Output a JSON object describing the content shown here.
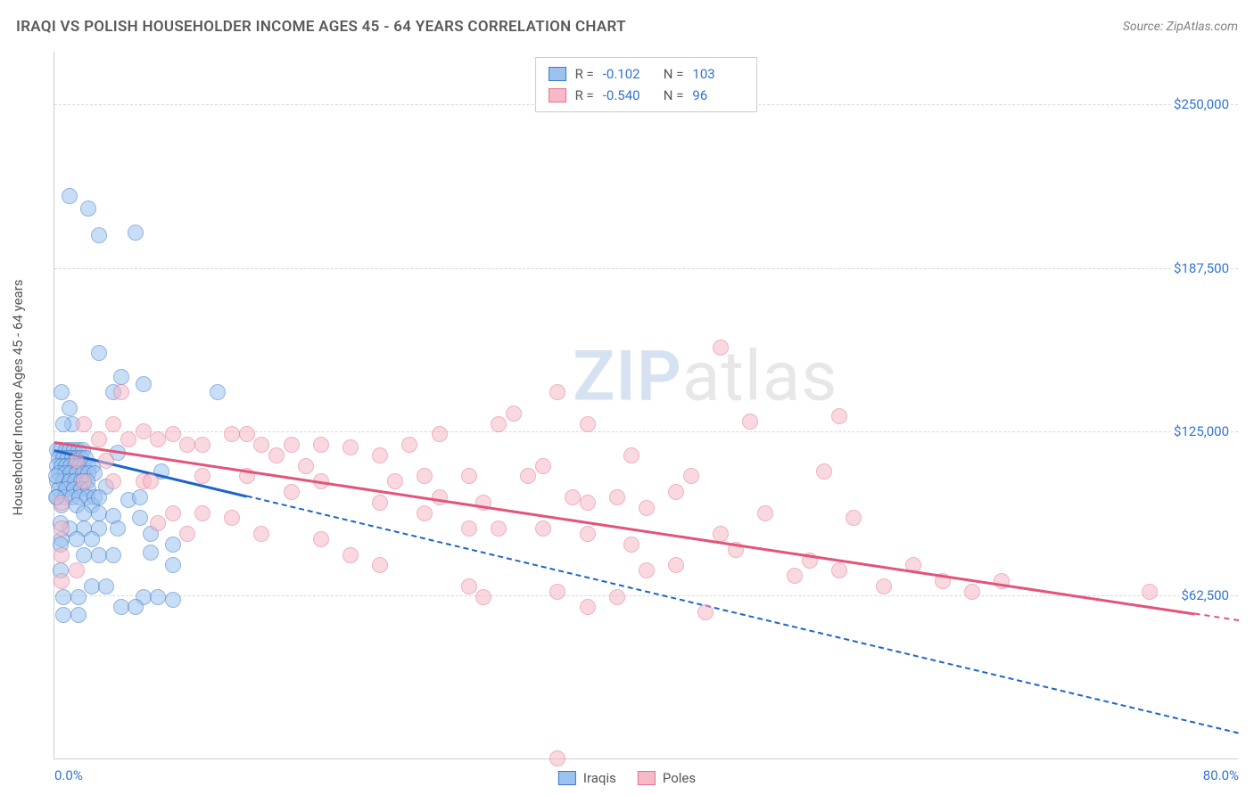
{
  "title": "IRAQI VS POLISH HOUSEHOLDER INCOME AGES 45 - 64 YEARS CORRELATION CHART",
  "source_label": "Source:",
  "source_name": "ZipAtlas.com",
  "ylabel": "Householder Income Ages 45 - 64 years",
  "watermark_a": "ZIP",
  "watermark_b": "atlas",
  "chart": {
    "type": "scatter",
    "background_color": "#ffffff",
    "grid_color": "#d8d8d8",
    "axis_color": "#cfcfcf",
    "text_color": "#555555",
    "tick_color": "#2f74d0",
    "xlim": [
      0,
      80
    ],
    "ylim": [
      0,
      270000
    ],
    "xticks": [
      {
        "v": 0,
        "label": "0.0%"
      },
      {
        "v": 80,
        "label": "80.0%"
      }
    ],
    "yticks": [
      {
        "v": 62500,
        "label": "$62,500"
      },
      {
        "v": 125000,
        "label": "$125,000"
      },
      {
        "v": 187500,
        "label": "$187,500"
      },
      {
        "v": 250000,
        "label": "$250,000"
      }
    ],
    "marker_radius": 9,
    "marker_opacity": 0.55,
    "series": [
      {
        "name": "Iraqis",
        "fill": "#9cc3f0",
        "stroke": "#3b78c9",
        "line_color": "#1f64c8",
        "R": "-0.102",
        "N": "103",
        "points": [
          [
            1.0,
            215000
          ],
          [
            2.3,
            210000
          ],
          [
            5.5,
            201000
          ],
          [
            3.0,
            200000
          ],
          [
            3.0,
            155000
          ],
          [
            4.5,
            146000
          ],
          [
            0.5,
            140000
          ],
          [
            1.0,
            134000
          ],
          [
            1.2,
            128000
          ],
          [
            0.6,
            128000
          ],
          [
            4.0,
            140000
          ],
          [
            4.3,
            117000
          ],
          [
            6.0,
            143000
          ],
          [
            7.2,
            110000
          ],
          [
            11.0,
            140000
          ],
          [
            0.2,
            118000
          ],
          [
            0.4,
            118000
          ],
          [
            0.8,
            118000
          ],
          [
            1.0,
            118000
          ],
          [
            1.3,
            118000
          ],
          [
            1.6,
            118000
          ],
          [
            1.9,
            118000
          ],
          [
            0.3,
            115000
          ],
          [
            0.6,
            115000
          ],
          [
            0.9,
            115000
          ],
          [
            1.2,
            115000
          ],
          [
            1.5,
            115000
          ],
          [
            1.8,
            115000
          ],
          [
            2.1,
            115000
          ],
          [
            0.2,
            112000
          ],
          [
            0.5,
            112000
          ],
          [
            0.8,
            112000
          ],
          [
            1.1,
            112000
          ],
          [
            1.4,
            112000
          ],
          [
            1.7,
            112000
          ],
          [
            2.0,
            112000
          ],
          [
            2.3,
            112000
          ],
          [
            2.6,
            112000
          ],
          [
            0.3,
            109000
          ],
          [
            0.7,
            109000
          ],
          [
            1.1,
            109000
          ],
          [
            1.5,
            109000
          ],
          [
            1.9,
            109000
          ],
          [
            2.3,
            109000
          ],
          [
            2.7,
            109000
          ],
          [
            0.2,
            106000
          ],
          [
            0.6,
            106000
          ],
          [
            1.0,
            106000
          ],
          [
            1.4,
            106000
          ],
          [
            1.8,
            106000
          ],
          [
            2.2,
            106000
          ],
          [
            0.3,
            103000
          ],
          [
            0.8,
            103000
          ],
          [
            1.3,
            103000
          ],
          [
            1.8,
            103000
          ],
          [
            2.3,
            103000
          ],
          [
            0.2,
            100000
          ],
          [
            0.7,
            100000
          ],
          [
            1.2,
            100000
          ],
          [
            1.7,
            100000
          ],
          [
            2.2,
            100000
          ],
          [
            2.7,
            100000
          ],
          [
            0.5,
            97000
          ],
          [
            1.5,
            97000
          ],
          [
            2.5,
            97000
          ],
          [
            3.5,
            104000
          ],
          [
            3.0,
            100000
          ],
          [
            2.0,
            94000
          ],
          [
            3.0,
            94000
          ],
          [
            4.0,
            93000
          ],
          [
            5.0,
            99000
          ],
          [
            4.3,
            88000
          ],
          [
            3.0,
            88000
          ],
          [
            2.0,
            88000
          ],
          [
            1.0,
            88000
          ],
          [
            0.5,
            84000
          ],
          [
            1.5,
            84000
          ],
          [
            2.5,
            84000
          ],
          [
            5.8,
            92000
          ],
          [
            5.8,
            100000
          ],
          [
            2.0,
            78000
          ],
          [
            3.0,
            78000
          ],
          [
            4.0,
            78000
          ],
          [
            6.5,
            79000
          ],
          [
            6.5,
            86000
          ],
          [
            8.0,
            82000
          ],
          [
            8.0,
            74000
          ],
          [
            2.5,
            66000
          ],
          [
            3.5,
            66000
          ],
          [
            6.0,
            62000
          ],
          [
            7.0,
            62000
          ],
          [
            8.0,
            61000
          ],
          [
            4.5,
            58000
          ],
          [
            5.5,
            58000
          ],
          [
            0.6,
            62000
          ],
          [
            1.6,
            62000
          ],
          [
            1.6,
            55000
          ],
          [
            0.6,
            55000
          ],
          [
            0.4,
            82000
          ],
          [
            0.4,
            90000
          ],
          [
            0.4,
            72000
          ],
          [
            0.1,
            108000
          ],
          [
            0.1,
            100000
          ]
        ],
        "reg": {
          "x1": 0,
          "y1": 118000,
          "x2": 80,
          "y2": 10000,
          "solid_until_x": 13
        }
      },
      {
        "name": "Poles",
        "fill": "#f5b9c8",
        "stroke": "#e2748f",
        "line_color": "#e25578",
        "R": "-0.540",
        "N": "96",
        "points": [
          [
            45.0,
            157000
          ],
          [
            34.0,
            140000
          ],
          [
            36.0,
            128000
          ],
          [
            47.0,
            129000
          ],
          [
            52.0,
            110000
          ],
          [
            53.0,
            131000
          ],
          [
            2.0,
            128000
          ],
          [
            3.0,
            122000
          ],
          [
            4.0,
            128000
          ],
          [
            5.0,
            122000
          ],
          [
            6.0,
            125000
          ],
          [
            7.0,
            122000
          ],
          [
            8.0,
            124000
          ],
          [
            9.0,
            120000
          ],
          [
            10.0,
            120000
          ],
          [
            12.0,
            124000
          ],
          [
            13.0,
            124000
          ],
          [
            14.0,
            120000
          ],
          [
            15.0,
            116000
          ],
          [
            16.0,
            120000
          ],
          [
            18.0,
            120000
          ],
          [
            20.0,
            119000
          ],
          [
            22.0,
            116000
          ],
          [
            24.0,
            120000
          ],
          [
            25.0,
            108000
          ],
          [
            26.0,
            124000
          ],
          [
            28.0,
            108000
          ],
          [
            30.0,
            128000
          ],
          [
            31.0,
            132000
          ],
          [
            32.0,
            108000
          ],
          [
            33.0,
            112000
          ],
          [
            35.0,
            100000
          ],
          [
            36.0,
            98000
          ],
          [
            38.0,
            100000
          ],
          [
            39.0,
            116000
          ],
          [
            40.0,
            96000
          ],
          [
            42.0,
            102000
          ],
          [
            43.0,
            108000
          ],
          [
            45.0,
            86000
          ],
          [
            46.0,
            80000
          ],
          [
            48.0,
            94000
          ],
          [
            50.0,
            70000
          ],
          [
            51.0,
            76000
          ],
          [
            53.0,
            72000
          ],
          [
            54.0,
            92000
          ],
          [
            56.0,
            66000
          ],
          [
            58.0,
            74000
          ],
          [
            60.0,
            68000
          ],
          [
            62.0,
            64000
          ],
          [
            64.0,
            68000
          ],
          [
            74.0,
            64000
          ],
          [
            10.0,
            108000
          ],
          [
            13.0,
            108000
          ],
          [
            16.0,
            102000
          ],
          [
            17.0,
            112000
          ],
          [
            18.0,
            106000
          ],
          [
            22.0,
            98000
          ],
          [
            23.0,
            106000
          ],
          [
            25.0,
            94000
          ],
          [
            26.0,
            100000
          ],
          [
            28.0,
            88000
          ],
          [
            29.0,
            98000
          ],
          [
            30.0,
            88000
          ],
          [
            33.0,
            88000
          ],
          [
            36.0,
            86000
          ],
          [
            39.0,
            82000
          ],
          [
            40.0,
            72000
          ],
          [
            42.0,
            74000
          ],
          [
            28.0,
            66000
          ],
          [
            29.0,
            62000
          ],
          [
            34.0,
            64000
          ],
          [
            36.0,
            58000
          ],
          [
            38.0,
            62000
          ],
          [
            44.0,
            56000
          ],
          [
            7.0,
            90000
          ],
          [
            8.0,
            94000
          ],
          [
            9.0,
            86000
          ],
          [
            10.0,
            94000
          ],
          [
            12.0,
            92000
          ],
          [
            14.0,
            86000
          ],
          [
            6.0,
            106000
          ],
          [
            4.0,
            106000
          ],
          [
            2.0,
            106000
          ],
          [
            0.5,
            98000
          ],
          [
            0.5,
            88000
          ],
          [
            0.5,
            78000
          ],
          [
            0.5,
            68000
          ],
          [
            1.5,
            72000
          ],
          [
            1.5,
            114000
          ],
          [
            3.5,
            114000
          ],
          [
            4.5,
            140000
          ],
          [
            6.5,
            106000
          ],
          [
            34.0,
            500
          ],
          [
            20.0,
            78000
          ],
          [
            22.0,
            74000
          ],
          [
            18.0,
            84000
          ]
        ],
        "reg": {
          "x1": 0,
          "y1": 121000,
          "x2": 80,
          "y2": 53000,
          "solid_until_x": 77
        }
      }
    ]
  },
  "legend": {
    "iraqis": "Iraqis",
    "poles": "Poles",
    "R_prefix": "R =",
    "N_prefix": "N ="
  }
}
